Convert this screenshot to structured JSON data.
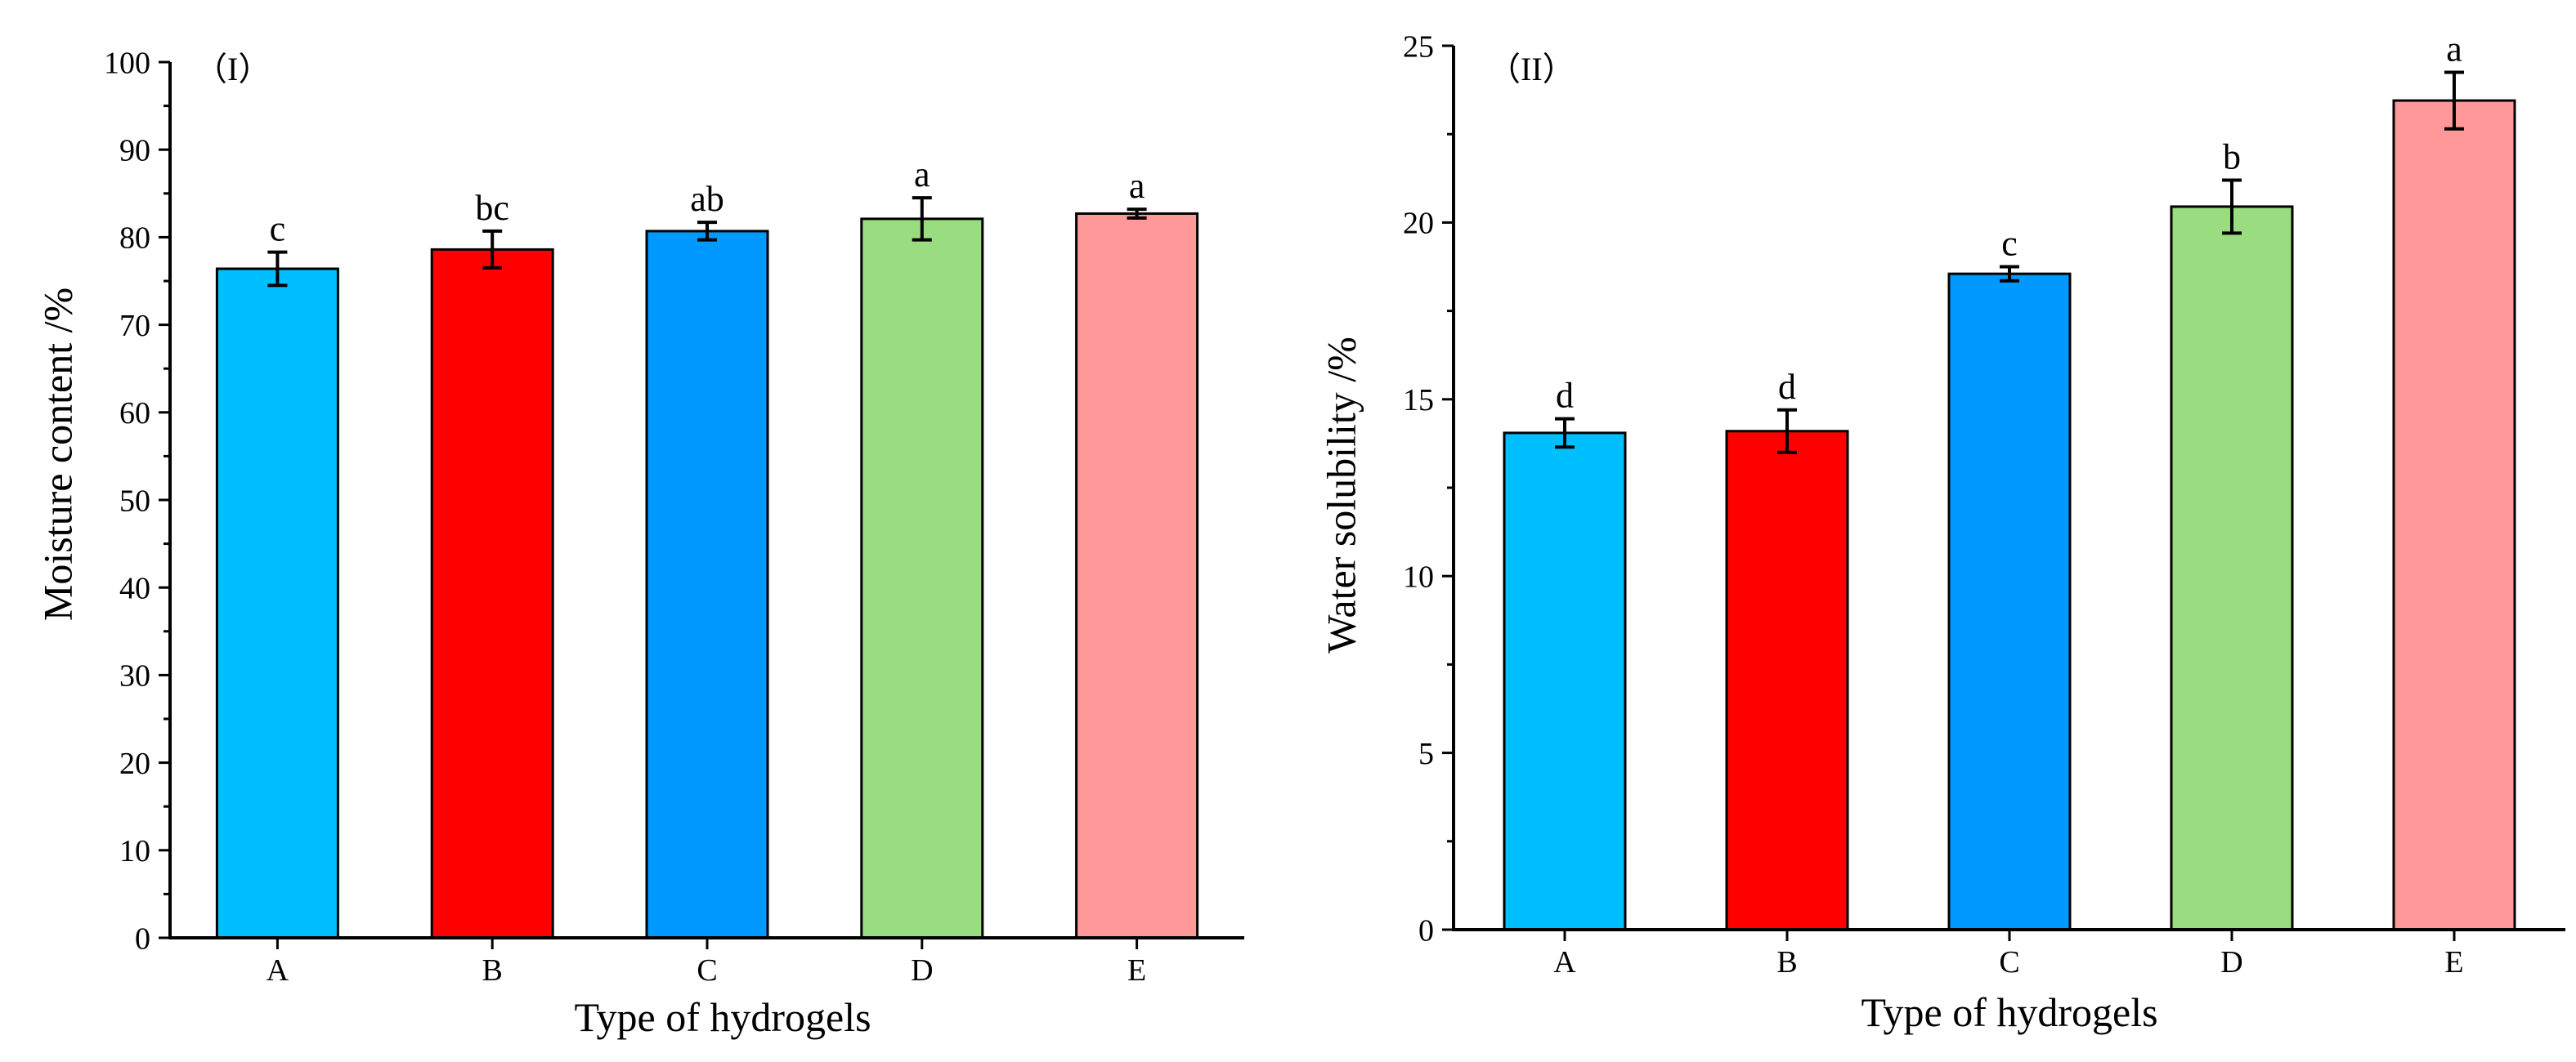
{
  "chart_data": [
    {
      "type": "bar",
      "panel_label": "（I）",
      "title": "",
      "xlabel": "Type of hydrogels",
      "ylabel": "Moisture content /%",
      "categories": [
        "A",
        "B",
        "C",
        "D",
        "E"
      ],
      "values": [
        76.4,
        78.6,
        80.7,
        82.1,
        82.7
      ],
      "errors": [
        1.9,
        2.1,
        1.0,
        2.4,
        0.5
      ],
      "significance": [
        "c",
        "bc",
        "ab",
        "a",
        "a"
      ],
      "colors": [
        "#00BFFF",
        "#FF0000",
        "#0099FF",
        "#99DD80",
        "#FF9999"
      ],
      "ylim": [
        0,
        100
      ],
      "yticks": [
        0,
        10,
        20,
        30,
        40,
        50,
        60,
        70,
        80,
        90,
        100
      ],
      "grid": false,
      "legend": "none"
    },
    {
      "type": "bar",
      "panel_label": "（II）",
      "title": "",
      "xlabel": "Type of hydrogels",
      "ylabel": "Water solubility /%",
      "categories": [
        "A",
        "B",
        "C",
        "D",
        "E"
      ],
      "values": [
        14.05,
        14.1,
        18.55,
        20.45,
        23.45
      ],
      "errors": [
        0.4,
        0.6,
        0.2,
        0.75,
        0.8
      ],
      "significance": [
        "d",
        "d",
        "c",
        "b",
        "a"
      ],
      "colors": [
        "#00BFFF",
        "#FF0000",
        "#0099FF",
        "#99DD80",
        "#FF9999"
      ],
      "ylim": [
        0,
        25
      ],
      "yticks": [
        0,
        5,
        10,
        15,
        20,
        25
      ],
      "grid": false,
      "legend": "none"
    }
  ]
}
